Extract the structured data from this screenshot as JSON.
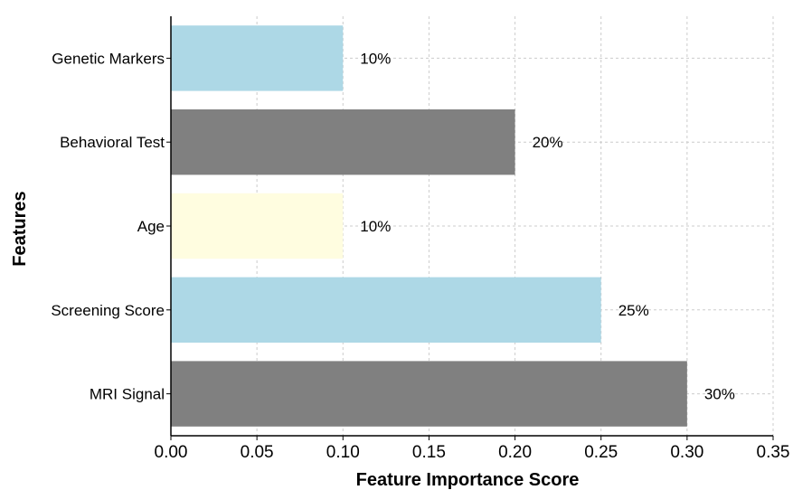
{
  "chart_data": {
    "type": "bar",
    "orientation": "horizontal",
    "categories": [
      "MRI Signal",
      "Screening Score",
      "Age",
      "Behavioral Test",
      "Genetic Markers"
    ],
    "values": [
      0.3,
      0.25,
      0.1,
      0.2,
      0.1
    ],
    "value_labels": [
      "30%",
      "25%",
      "10%",
      "20%",
      "10%"
    ],
    "bar_colors": [
      "#808080",
      "#add8e6",
      "#fffde0",
      "#808080",
      "#add8e6"
    ],
    "title": "",
    "xlabel": "Feature Importance Score",
    "ylabel": "Features",
    "xlim": [
      0,
      0.35
    ],
    "xticks": [
      0.0,
      0.05,
      0.1,
      0.15,
      0.2,
      0.25,
      0.3,
      0.35
    ],
    "xtick_labels": [
      "0.00",
      "0.05",
      "0.10",
      "0.15",
      "0.20",
      "0.25",
      "0.30",
      "0.35"
    ],
    "grid": true,
    "legend": "none"
  }
}
